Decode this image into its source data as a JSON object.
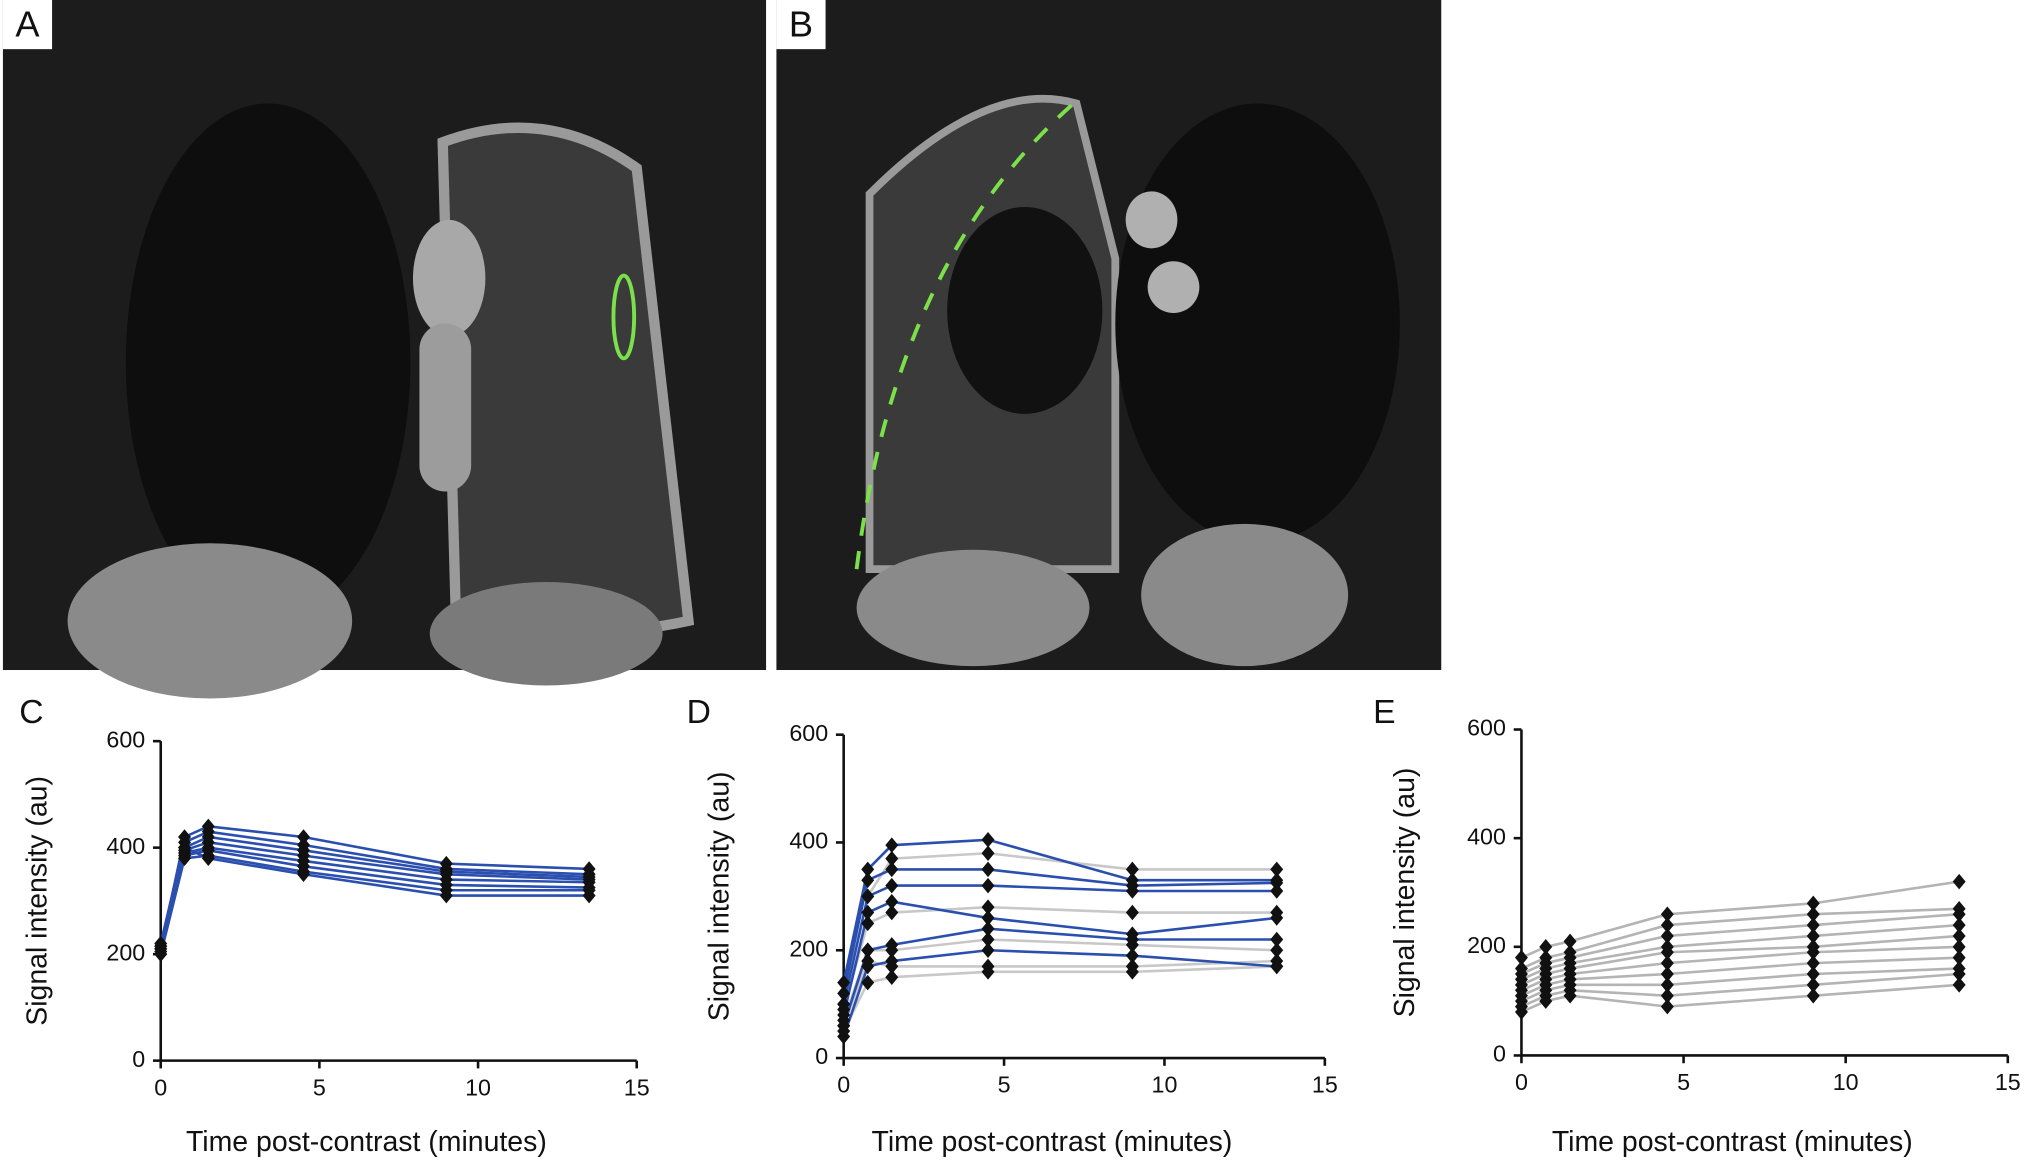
{
  "panels": [
    {
      "label": "A"
    },
    {
      "label": "B"
    }
  ],
  "chart_data": [
    {
      "type": "line",
      "panel_label": "C",
      "y_label": "Signal intensity (au)",
      "x_label": "Time post-contrast (minutes)",
      "x": [
        0,
        0.75,
        1.5,
        4.5,
        9,
        13.5
      ],
      "xlim": [
        0,
        15
      ],
      "xticks": [
        0,
        5,
        10,
        15
      ],
      "ylim": [
        0,
        600
      ],
      "yticks": [
        0,
        200,
        400,
        600
      ],
      "series": [
        {
          "color": "#2b4fae",
          "values": [
            210,
            420,
            440,
            420,
            370,
            360
          ]
        },
        {
          "color": "#2b4fae",
          "values": [
            220,
            410,
            430,
            405,
            360,
            350
          ]
        },
        {
          "color": "#2b4fae",
          "values": [
            200,
            400,
            420,
            395,
            355,
            345
          ]
        },
        {
          "color": "#2b4fae",
          "values": [
            215,
            395,
            410,
            385,
            350,
            340
          ]
        },
        {
          "color": "#2b4fae",
          "values": [
            205,
            390,
            400,
            375,
            340,
            335
          ]
        },
        {
          "color": "#2b4fae",
          "values": [
            210,
            385,
            395,
            365,
            330,
            325
          ]
        },
        {
          "color": "#2b4fae",
          "values": [
            200,
            380,
            385,
            355,
            320,
            320
          ]
        },
        {
          "color": "#2b4fae",
          "values": [
            215,
            400,
            380,
            350,
            310,
            310
          ]
        }
      ]
    },
    {
      "type": "line",
      "panel_label": "D",
      "y_label": "Signal intensity (au)",
      "x_label": "Time post-contrast (minutes)",
      "x": [
        0,
        0.75,
        1.5,
        4.5,
        9,
        13.5
      ],
      "xlim": [
        0,
        15
      ],
      "xticks": [
        0,
        5,
        10,
        15
      ],
      "ylim": [
        0,
        600
      ],
      "yticks": [
        0,
        200,
        400,
        600
      ],
      "series": [
        {
          "color": "#c8c8c8",
          "values": [
            100,
            300,
            370,
            380,
            350,
            350
          ]
        },
        {
          "color": "#c8c8c8",
          "values": [
            90,
            250,
            270,
            280,
            270,
            270
          ]
        },
        {
          "color": "#c8c8c8",
          "values": [
            70,
            200,
            200,
            220,
            210,
            200
          ]
        },
        {
          "color": "#c8c8c8",
          "values": [
            60,
            180,
            170,
            170,
            170,
            180
          ]
        },
        {
          "color": "#c8c8c8",
          "values": [
            50,
            140,
            150,
            160,
            160,
            170
          ]
        },
        {
          "color": "#2b4fae",
          "values": [
            140,
            350,
            395,
            405,
            330,
            330
          ]
        },
        {
          "color": "#2b4fae",
          "values": [
            120,
            330,
            350,
            350,
            320,
            325
          ]
        },
        {
          "color": "#2b4fae",
          "values": [
            100,
            300,
            320,
            320,
            310,
            310
          ]
        },
        {
          "color": "#2b4fae",
          "values": [
            80,
            270,
            290,
            260,
            230,
            260
          ]
        },
        {
          "color": "#2b4fae",
          "values": [
            60,
            200,
            210,
            240,
            220,
            220
          ]
        },
        {
          "color": "#2b4fae",
          "values": [
            40,
            170,
            180,
            200,
            190,
            170
          ]
        }
      ]
    },
    {
      "type": "line",
      "panel_label": "E",
      "y_label": "Signal intensity (au)",
      "x_label": "Time post-contrast (minutes)",
      "x": [
        0,
        0.75,
        1.5,
        4.5,
        9,
        13.5
      ],
      "xlim": [
        0,
        15
      ],
      "xticks": [
        0,
        5,
        10,
        15
      ],
      "ylim": [
        0,
        600
      ],
      "yticks": [
        0,
        200,
        400,
        600
      ],
      "series": [
        {
          "color": "#b4b4b4",
          "values": [
            180,
            200,
            210,
            260,
            280,
            320
          ]
        },
        {
          "color": "#b4b4b4",
          "values": [
            160,
            180,
            190,
            240,
            260,
            270
          ]
        },
        {
          "color": "#b4b4b4",
          "values": [
            150,
            170,
            180,
            220,
            240,
            260
          ]
        },
        {
          "color": "#b4b4b4",
          "values": [
            140,
            160,
            170,
            200,
            220,
            240
          ]
        },
        {
          "color": "#b4b4b4",
          "values": [
            130,
            150,
            160,
            190,
            200,
            220
          ]
        },
        {
          "color": "#b4b4b4",
          "values": [
            120,
            140,
            150,
            170,
            190,
            200
          ]
        },
        {
          "color": "#b4b4b4",
          "values": [
            110,
            130,
            140,
            150,
            170,
            180
          ]
        },
        {
          "color": "#b4b4b4",
          "values": [
            100,
            120,
            130,
            130,
            150,
            160
          ]
        },
        {
          "color": "#b4b4b4",
          "values": [
            90,
            110,
            120,
            110,
            130,
            150
          ]
        },
        {
          "color": "#b4b4b4",
          "values": [
            80,
            100,
            110,
            90,
            110,
            130
          ]
        }
      ]
    }
  ]
}
